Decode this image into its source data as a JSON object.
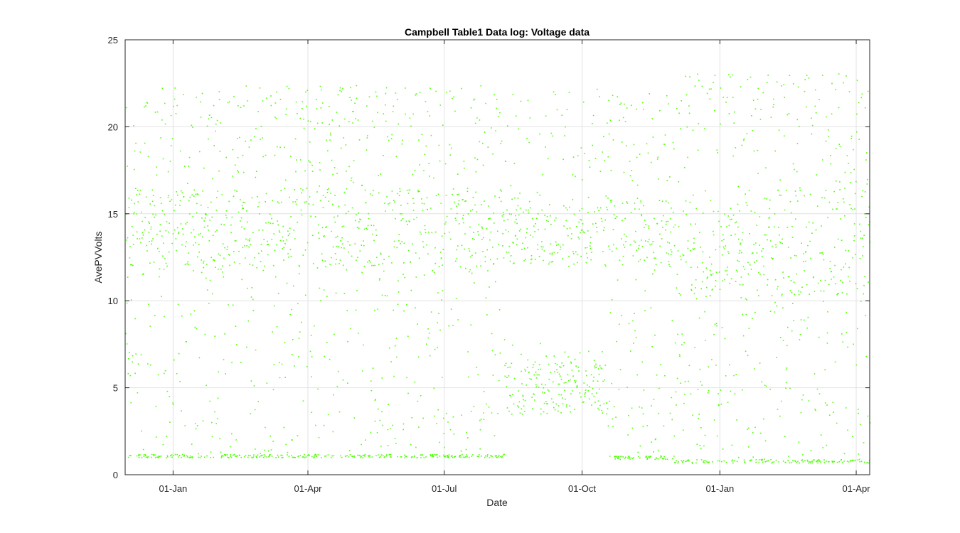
{
  "chart_data": {
    "type": "scatter",
    "title": "Campbell Table1 Data log: Voltage data",
    "xlabel": "Date",
    "ylabel": "AvePVVolts",
    "xlim": [
      "2018-11-30",
      "2020-04-10"
    ],
    "ylim": [
      0,
      25
    ],
    "x_ticks": [
      "2019-01-01",
      "2019-04-01",
      "2019-07-01",
      "2019-10-01",
      "2020-01-01",
      "2020-04-01"
    ],
    "x_tick_labels": [
      "01-Jan",
      "01-Apr",
      "01-Jul",
      "01-Oct",
      "01-Jan",
      "01-Apr"
    ],
    "y_ticks": [
      0,
      5,
      10,
      15,
      20,
      25
    ],
    "y_tick_labels": [
      "0",
      "5",
      "10",
      "15",
      "20",
      "25"
    ],
    "grid": true,
    "marker_color": "#4dff00",
    "series": [
      {
        "bands": [
          {
            "from": "2018-11-30",
            "to": "2019-08-10",
            "low": 1.1,
            "night": [
              1.0,
              12.3
            ],
            "day": [
              12.0,
              16.5
            ],
            "peak": [
              16.5,
              22.4
            ]
          },
          {
            "from": "2019-08-10",
            "to": "2019-10-18",
            "low": 4.5,
            "night": [
              3.5,
              7.8
            ],
            "day": [
              12.0,
              15.5
            ],
            "peak": [
              15.5,
              22.3
            ]
          },
          {
            "from": "2019-10-18",
            "to": "2019-12-01",
            "low": 1.0,
            "night": [
              1.0,
              12.5
            ],
            "day": [
              12.0,
              16.0
            ],
            "peak": [
              16.0,
              22.0
            ]
          },
          {
            "from": "2019-12-01",
            "to": "2020-04-10",
            "low": 0.8,
            "night": [
              0.5,
              10.5
            ],
            "day": [
              10.3,
              16.5
            ],
            "peak": [
              16.5,
              23.1
            ]
          }
        ]
      }
    ]
  }
}
